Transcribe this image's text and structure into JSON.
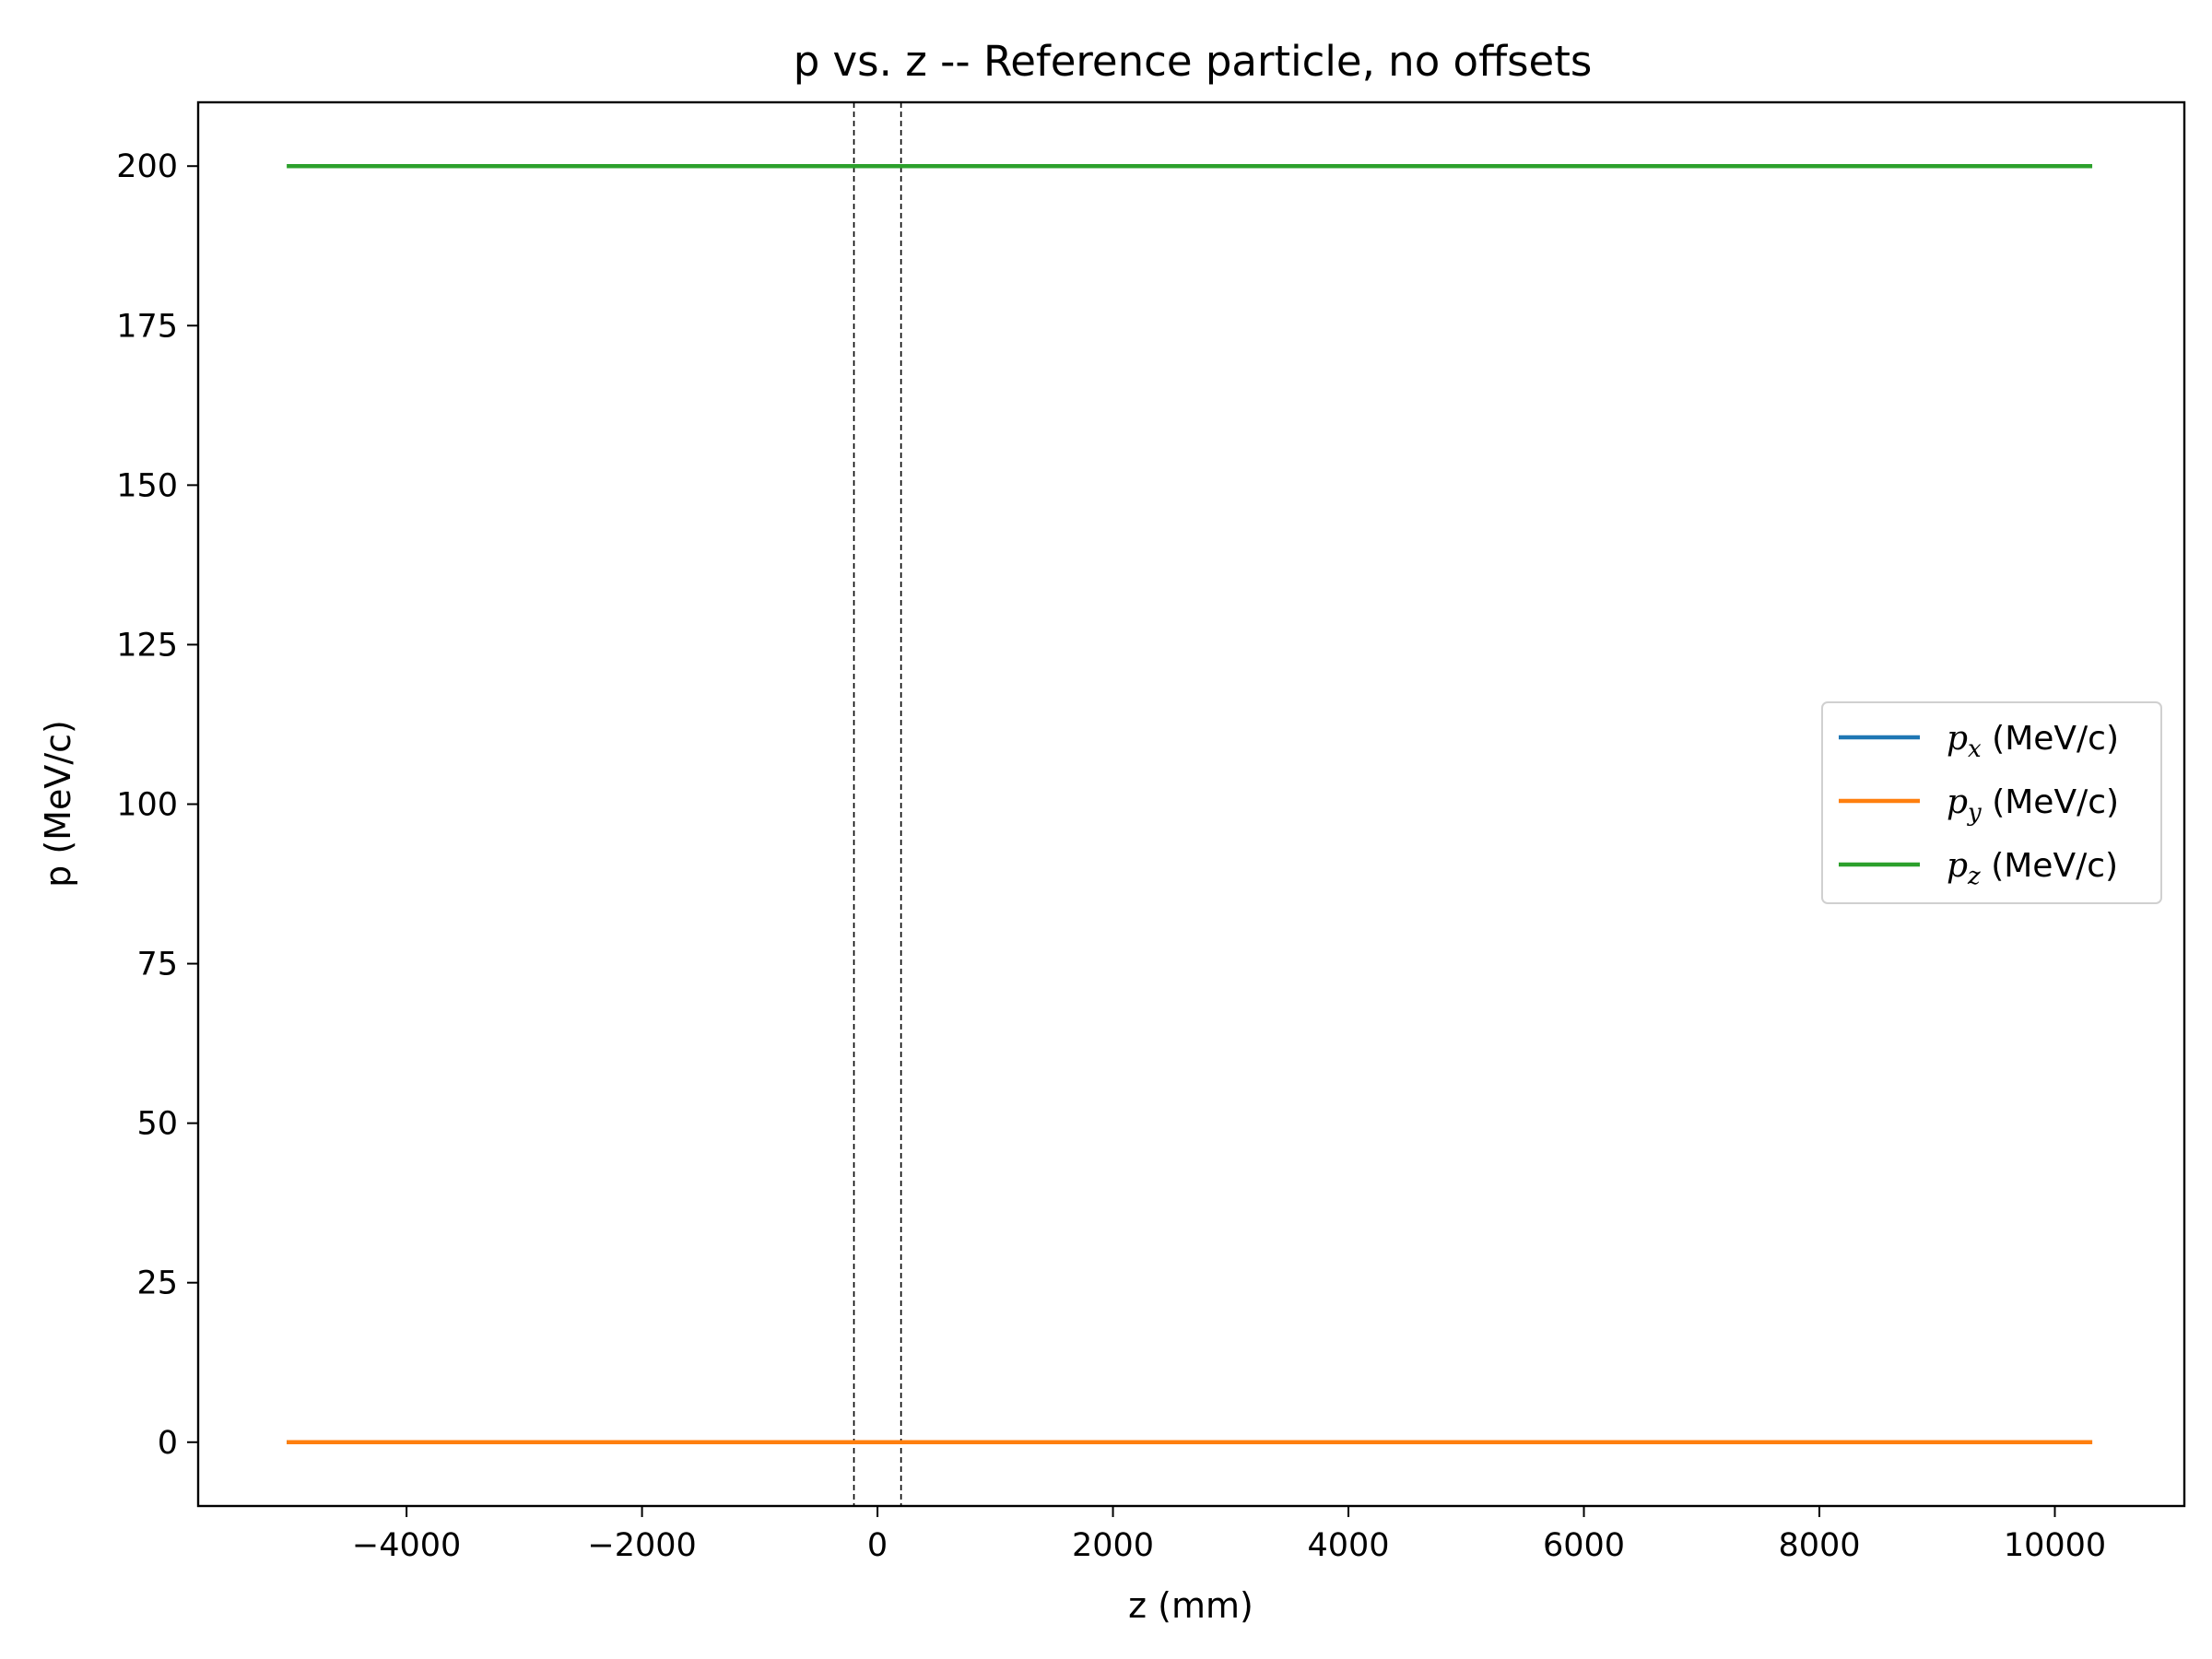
{
  "chart_data": {
    "type": "line",
    "title": "p vs. z -- Reference particle, no offsets",
    "xlabel": "z (mm)",
    "ylabel": "p (MeV/c)",
    "xlim": [
      -5770,
      11100
    ],
    "ylim": [
      -10,
      210
    ],
    "xticks": [
      -4000,
      -2000,
      0,
      2000,
      4000,
      6000,
      8000,
      10000
    ],
    "xtick_labels": [
      "−4000",
      "−2000",
      "0",
      "2000",
      "4000",
      "6000",
      "8000",
      "10000"
    ],
    "yticks": [
      0,
      25,
      50,
      75,
      100,
      125,
      150,
      175,
      200
    ],
    "ytick_labels": [
      "0",
      "25",
      "50",
      "75",
      "100",
      "125",
      "150",
      "175",
      "200"
    ],
    "grid": false,
    "legend_position": "center-right",
    "series": [
      {
        "name": "p_x (MeV/c)",
        "sym": "p",
        "sub": "x",
        "unit": " (MeV/c)",
        "color": "#1f77b4",
        "x": [
          -5000,
          10300
        ],
        "y": [
          0,
          0
        ]
      },
      {
        "name": "p_y (MeV/c)",
        "sym": "p",
        "sub": "y",
        "unit": " (MeV/c)",
        "color": "#ff7f0e",
        "x": [
          -5000,
          10300
        ],
        "y": [
          0,
          0
        ]
      },
      {
        "name": "p_z (MeV/c)",
        "sym": "p",
        "sub": "z",
        "unit": " (MeV/c)",
        "color": "#2ca02c",
        "x": [
          -5000,
          10300
        ],
        "y": [
          200,
          200
        ]
      }
    ],
    "vlines": [
      {
        "x": -200,
        "style": "dashed",
        "color": "#000000"
      },
      {
        "x": 200,
        "style": "dashed",
        "color": "#000000"
      }
    ]
  }
}
